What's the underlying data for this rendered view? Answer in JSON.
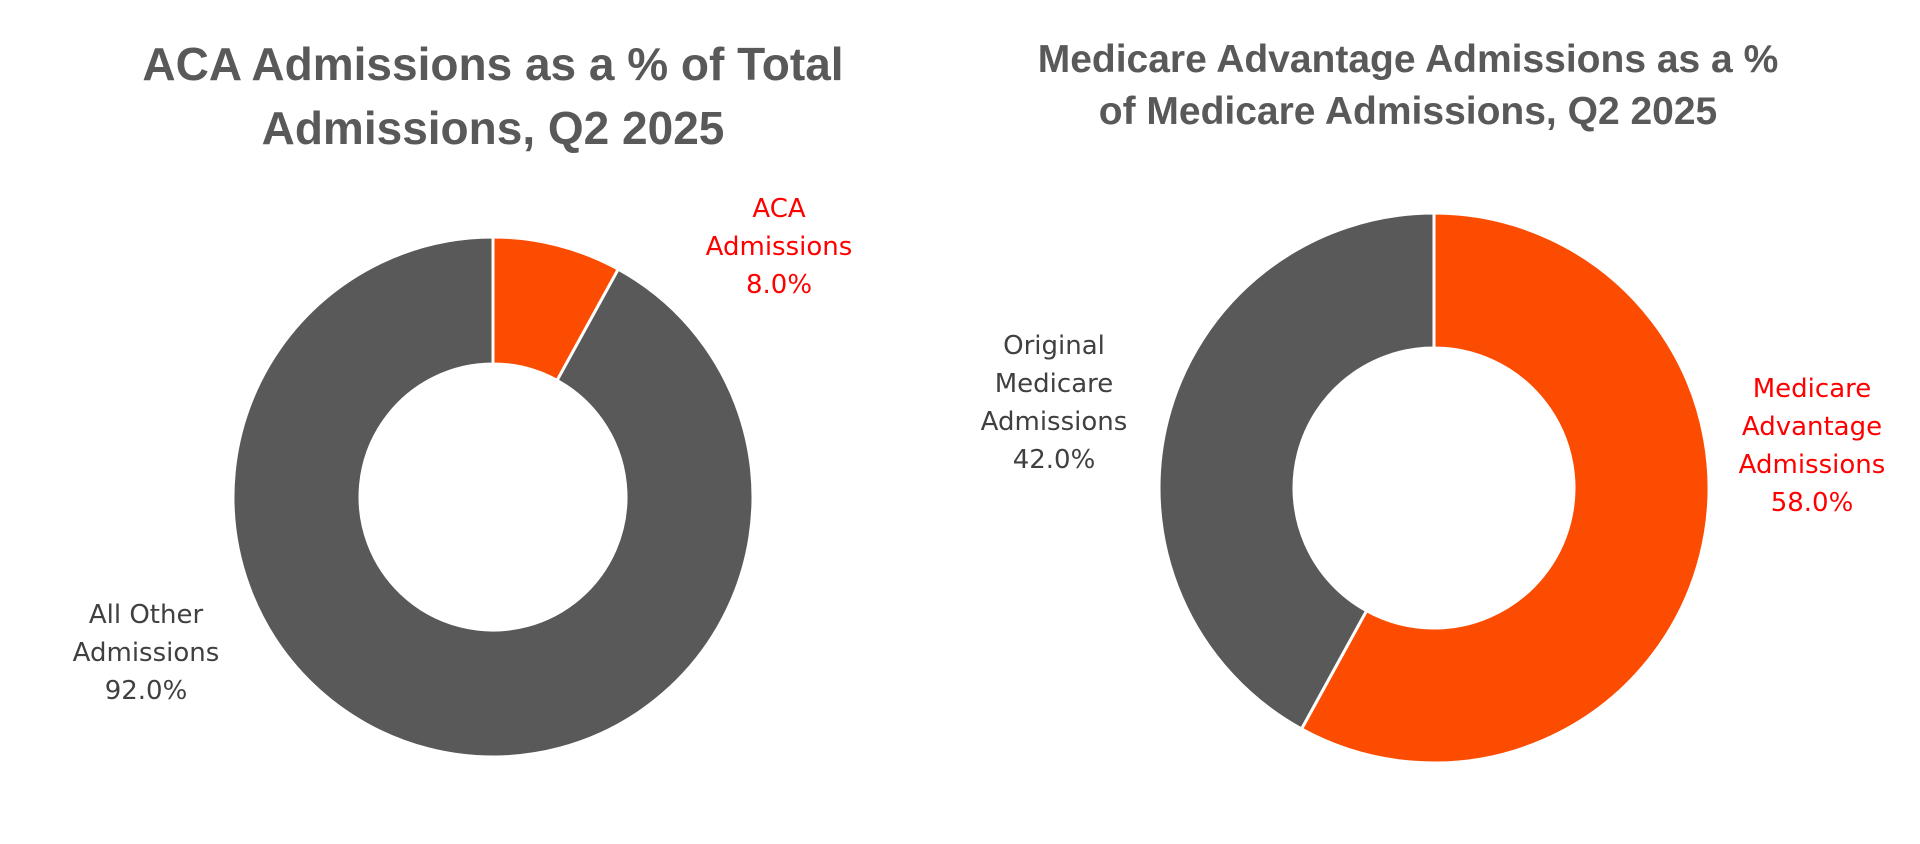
{
  "colors": {
    "accent": "#FC4C02",
    "gray": "#595959",
    "label_red": "#FF0000",
    "label_gray": "#404040",
    "title": "#595959"
  },
  "chart_data": [
    {
      "type": "pie",
      "donut": true,
      "title": "ACA Admissions as a % of Total Admissions, Q2 2025",
      "title_lines": [
        "ACA Admissions as a % of Total",
        "Admissions, Q2 2025"
      ],
      "slices": [
        {
          "label": "ACA Admissions",
          "value": 8.0,
          "value_label": "8.0%",
          "label_lines": [
            "ACA",
            "Admissions",
            "8.0%"
          ],
          "color": "#FC4C02",
          "label_color": "#FF0000"
        },
        {
          "label": "All Other Admissions",
          "value": 92.0,
          "value_label": "92.0%",
          "label_lines": [
            "All Other",
            "Admissions",
            "92.0%"
          ],
          "color": "#595959",
          "label_color": "#404040"
        }
      ]
    },
    {
      "type": "pie",
      "donut": true,
      "title": "Medicare Advantage Admissions as a % of Medicare Admissions, Q2 2025",
      "title_lines": [
        "Medicare Advantage Admissions as a %",
        "of Medicare Admissions, Q2 2025"
      ],
      "slices": [
        {
          "label": "Medicare Advantage Admissions",
          "value": 58.0,
          "value_label": "58.0%",
          "label_lines": [
            "Medicare",
            "Advantage",
            "Admissions",
            "58.0%"
          ],
          "color": "#FC4C02",
          "label_color": "#FF0000"
        },
        {
          "label": "Original Medicare Admissions",
          "value": 42.0,
          "value_label": "42.0%",
          "label_lines": [
            "Original",
            "Medicare",
            "Admissions",
            "42.0%"
          ],
          "color": "#595959",
          "label_color": "#404040"
        }
      ]
    }
  ]
}
